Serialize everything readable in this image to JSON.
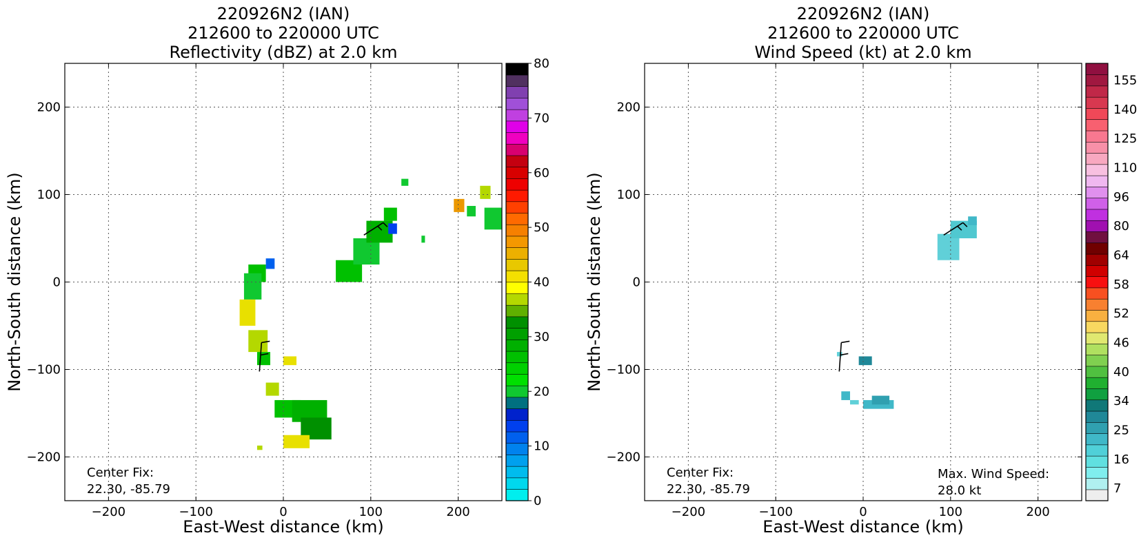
{
  "chart_data": [
    {
      "type": "heatmap",
      "title_lines": [
        "220926N2 (IAN)",
        "212600 to 220000 UTC",
        "Reflectivity (dBZ) at 2.0 km"
      ],
      "xlabel": "East-West distance (km)",
      "ylabel": "North-South distance (km)",
      "xlim": [
        -250,
        250
      ],
      "ylim": [
        -250,
        250
      ],
      "xticks": [
        -200,
        -100,
        0,
        100,
        200
      ],
      "yticks": [
        -200,
        -100,
        0,
        100,
        200
      ],
      "grid": true,
      "note_lines": [
        "Center Fix:",
        "22.30, -85.79"
      ],
      "colorbar": {
        "min": 0,
        "max": 80,
        "levels": 32,
        "ticks": [
          0,
          10,
          20,
          30,
          40,
          50,
          60,
          70,
          80
        ],
        "colors": [
          "#00eeee",
          "#00d8ee",
          "#00bcee",
          "#00a0ee",
          "#0082ee",
          "#0060ee",
          "#0040ee",
          "#0022cc",
          "#007080",
          "#10c830",
          "#00e000",
          "#00d000",
          "#00c000",
          "#00b000",
          "#00a000",
          "#009000",
          "#60b000",
          "#b4d800",
          "#ffff00",
          "#f4e000",
          "#e8c800",
          "#ecb000",
          "#f49800",
          "#f68000",
          "#ff6a00",
          "#ff4000",
          "#ff1a00",
          "#ee0000",
          "#d80000",
          "#c40010",
          "#d80070",
          "#f000c0",
          "#e000e8",
          "#c040e0",
          "#a050d8",
          "#8040b0",
          "#503060",
          "#000000"
        ]
      },
      "cells": [
        {
          "x": -40,
          "y": 0,
          "w": 20,
          "h": 20,
          "c": "#00c000"
        },
        {
          "x": -45,
          "y": -20,
          "w": 20,
          "h": 30,
          "c": "#10c830"
        },
        {
          "x": -50,
          "y": -50,
          "w": 18,
          "h": 30,
          "c": "#e8e000"
        },
        {
          "x": -40,
          "y": -80,
          "w": 22,
          "h": 25,
          "c": "#b4d800"
        },
        {
          "x": -30,
          "y": -95,
          "w": 15,
          "h": 15,
          "c": "#00c000"
        },
        {
          "x": -20,
          "y": 15,
          "w": 10,
          "h": 12,
          "c": "#0060ee"
        },
        {
          "x": 0,
          "y": -95,
          "w": 15,
          "h": 10,
          "c": "#e8e000"
        },
        {
          "x": -20,
          "y": -130,
          "w": 15,
          "h": 15,
          "c": "#b4d800"
        },
        {
          "x": -10,
          "y": -155,
          "w": 30,
          "h": 20,
          "c": "#00c000"
        },
        {
          "x": 10,
          "y": -160,
          "w": 40,
          "h": 25,
          "c": "#00b000"
        },
        {
          "x": 20,
          "y": -180,
          "w": 35,
          "h": 25,
          "c": "#009000"
        },
        {
          "x": 0,
          "y": -190,
          "w": 30,
          "h": 15,
          "c": "#e8e000"
        },
        {
          "x": -30,
          "y": -192,
          "w": 6,
          "h": 5,
          "c": "#b4d800"
        },
        {
          "x": 60,
          "y": 0,
          "w": 30,
          "h": 25,
          "c": "#00c000"
        },
        {
          "x": 80,
          "y": 20,
          "w": 30,
          "h": 30,
          "c": "#10c830"
        },
        {
          "x": 95,
          "y": 45,
          "w": 30,
          "h": 25,
          "c": "#00b000"
        },
        {
          "x": 120,
          "y": 55,
          "w": 10,
          "h": 12,
          "c": "#0040ee"
        },
        {
          "x": 115,
          "y": 70,
          "w": 15,
          "h": 15,
          "c": "#00c000"
        },
        {
          "x": 135,
          "y": 110,
          "w": 8,
          "h": 8,
          "c": "#10c830"
        },
        {
          "x": 158,
          "y": 45,
          "w": 4,
          "h": 8,
          "c": "#10c830"
        },
        {
          "x": 195,
          "y": 80,
          "w": 12,
          "h": 15,
          "c": "#ec9800"
        },
        {
          "x": 210,
          "y": 75,
          "w": 10,
          "h": 12,
          "c": "#10c830"
        },
        {
          "x": 225,
          "y": 95,
          "w": 12,
          "h": 15,
          "c": "#b4d800"
        },
        {
          "x": 230,
          "y": 60,
          "w": 20,
          "h": 25,
          "c": "#10c830"
        }
      ],
      "barbs": [
        {
          "x": -25,
          "y": -85,
          "dir": "sw"
        },
        {
          "x": 100,
          "y": 60,
          "dir": "ne"
        }
      ]
    },
    {
      "type": "heatmap",
      "title_lines": [
        "220926N2 (IAN)",
        "212600 to 220000 UTC",
        "Wind Speed (kt) at 2.0 km"
      ],
      "xlabel": "East-West distance (km)",
      "ylabel": "North-South distance (km)",
      "xlim": [
        -250,
        250
      ],
      "ylim": [
        -250,
        250
      ],
      "xticks": [
        -200,
        -100,
        0,
        100,
        200
      ],
      "yticks": [
        -200,
        -100,
        0,
        100,
        200
      ],
      "grid": true,
      "note_lines": [
        "Center Fix:",
        "22.30, -85.79"
      ],
      "note2_lines": [
        "Max. Wind Speed:",
        "28.0 kt"
      ],
      "colorbar": {
        "ticks": [
          "7",
          "16",
          "25",
          "34",
          "40",
          "46",
          "52",
          "58",
          "64",
          "80",
          "96",
          "110",
          "125",
          "140",
          "155"
        ],
        "colors": [
          "#eeeeee",
          "#b0f0f0",
          "#80eeee",
          "#60e0e0",
          "#50d0d8",
          "#40b8c8",
          "#30a0b0",
          "#208898",
          "#107878",
          "#10a040",
          "#20b030",
          "#50c040",
          "#80d050",
          "#b0e060",
          "#e0e870",
          "#f8d860",
          "#f8b040",
          "#f88030",
          "#f85020",
          "#f81010",
          "#d00000",
          "#a00000",
          "#700000",
          "#701040",
          "#a010b0",
          "#c030e0",
          "#d060e8",
          "#e090ee",
          "#f0b8f0",
          "#f8c0e0",
          "#f8a8c0",
          "#f890a8",
          "#f87890",
          "#f86070",
          "#f04858",
          "#d83850",
          "#c02848",
          "#a01840",
          "#901040"
        ]
      },
      "cells": [
        {
          "x": 85,
          "y": 25,
          "w": 25,
          "h": 30,
          "c": "#60d0d8"
        },
        {
          "x": 100,
          "y": 50,
          "w": 30,
          "h": 20,
          "c": "#50c8d0"
        },
        {
          "x": 120,
          "y": 65,
          "w": 10,
          "h": 10,
          "c": "#40b8c8"
        },
        {
          "x": -30,
          "y": -85,
          "w": 6,
          "h": 5,
          "c": "#60d0d8"
        },
        {
          "x": -5,
          "y": -95,
          "w": 15,
          "h": 10,
          "c": "#208898"
        },
        {
          "x": -25,
          "y": -135,
          "w": 10,
          "h": 10,
          "c": "#40b8c8"
        },
        {
          "x": -15,
          "y": -140,
          "w": 10,
          "h": 5,
          "c": "#60d0d8"
        },
        {
          "x": 0,
          "y": -145,
          "w": 35,
          "h": 10,
          "c": "#40b8c8"
        },
        {
          "x": 10,
          "y": -140,
          "w": 20,
          "h": 10,
          "c": "#30a0b0"
        }
      ],
      "barbs": [
        {
          "x": -25,
          "y": -85,
          "dir": "sw"
        },
        {
          "x": 100,
          "y": 60,
          "dir": "ne"
        }
      ]
    }
  ]
}
